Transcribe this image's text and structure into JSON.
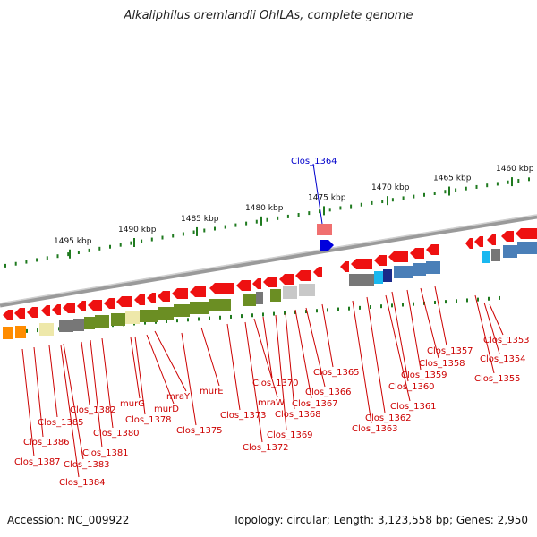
{
  "title": "Alkaliphilus oremlandii OhILAs, complete genome",
  "footer": {
    "accession": "Accession: NC_009922",
    "summary": "Topology: circular; Length: 3,123,558 bp; Genes: 2,950"
  },
  "ruler": {
    "labels": [
      "1495 kbp",
      "1490 kbp",
      "1485 kbp",
      "1480 kbp",
      "1475 kbp",
      "1470 kbp",
      "1465 kbp",
      "1460 kbp"
    ]
  },
  "colors": {
    "backbone": "#8a8a8a",
    "tick": "#1f7a1f",
    "gene_forward": "#ee1111",
    "gene_reverse": "#ee1111",
    "highlight_gene": "#0000dd",
    "label_line": "#cc0000",
    "label_text": "#cc0000",
    "feature_label_line": "#0000cc",
    "feature_label_text": "#0000cc",
    "cat_olive": "#6b8e23",
    "cat_gray": "#777777",
    "cat_lightgray": "#c8c8c8",
    "cat_yellow": "#eee8aa",
    "cat_blue": "#4a7fb8",
    "cat_cyan": "#19b8f0",
    "cat_navy": "#1a2a8a",
    "cat_orange": "#ff8c00",
    "cat_pink": "#f07070"
  },
  "feature_label": "Clos_1364",
  "gene_labels": [
    "Clos_1353",
    "Clos_1354",
    "Clos_1355",
    "Clos_1357",
    "Clos_1358",
    "Clos_1359",
    "Clos_1360",
    "Clos_1361",
    "Clos_1362",
    "Clos_1363",
    "Clos_1365",
    "Clos_1366",
    "Clos_1367",
    "Clos_1368",
    "Clos_1369",
    "Clos_1370",
    "mraW",
    "Clos_1372",
    "Clos_1373",
    "murE",
    "mraY",
    "murD",
    "Clos_1375",
    "murG",
    "Clos_1378",
    "Clos_1380",
    "Clos_1381",
    "Clos_1382",
    "Clos_1383",
    "Clos_1384",
    "Clos_1385",
    "Clos_1386",
    "Clos_1387"
  ]
}
